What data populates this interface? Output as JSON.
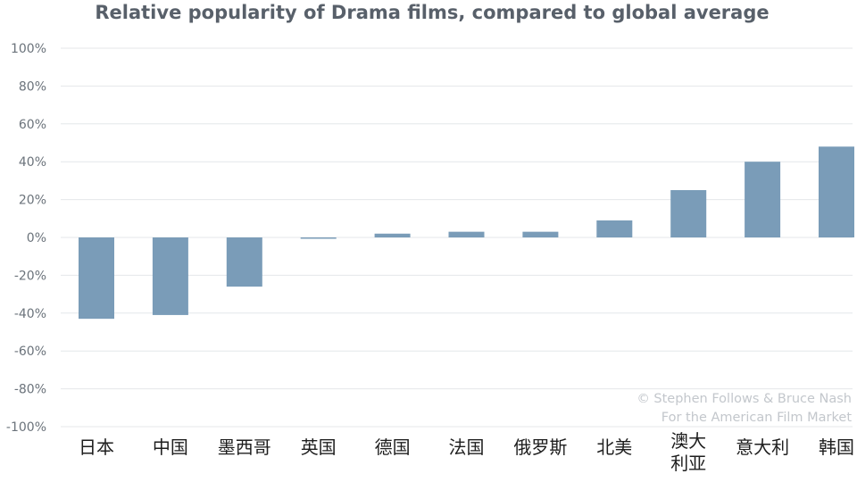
{
  "chart_data": {
    "type": "bar",
    "title": "Relative popularity of Drama films, compared to global average",
    "categories": [
      "日本",
      "中国",
      "墨西哥",
      "英国",
      "德国",
      "法国",
      "俄罗斯",
      "北美",
      "澳大利亚",
      "意大利",
      "韩国"
    ],
    "values": [
      -43,
      -41,
      -26,
      -0.5,
      2,
      3,
      3,
      9,
      25,
      40,
      48
    ],
    "ylim": [
      -100,
      100
    ],
    "yticks": [
      100,
      80,
      60,
      40,
      20,
      0,
      -20,
      -40,
      -60,
      -80,
      -100
    ],
    "ytick_labels": [
      "100%",
      "80%",
      "60%",
      "40%",
      "20%",
      "0%",
      "-20%",
      "-40%",
      "-60%",
      "-80%",
      "-100%"
    ],
    "xlabel": "",
    "ylabel": "",
    "grid": true,
    "bar_color": "#7a9cb8"
  },
  "credit": {
    "line1": "© Stephen Follows & Bruce Nash",
    "line2": "For the American Film Market"
  }
}
